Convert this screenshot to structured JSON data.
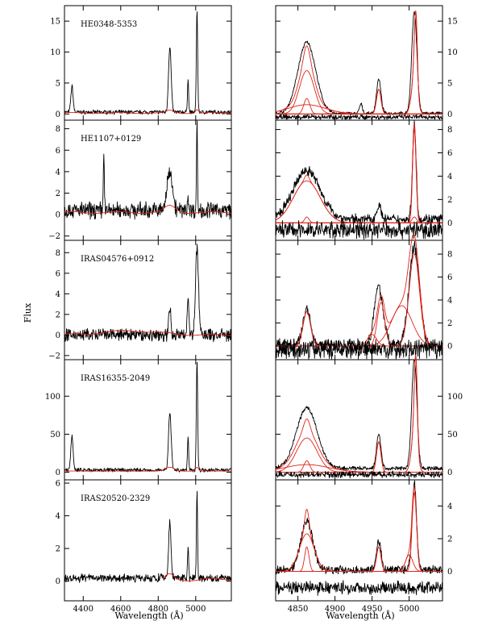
{
  "figure": {
    "ylabel": "Flux",
    "xlabel_left": "Wavelength (Å)",
    "xlabel_right": "Wavelength (Å)",
    "colors": {
      "spectrum": "#000000",
      "model": "#e0241a"
    }
  },
  "chart_data": [
    {
      "type": "line",
      "panel": "left-1",
      "name": "HE0348-5353",
      "xlim": [
        4300,
        5190
      ],
      "ylim": [
        -1,
        17.5
      ],
      "xticks": [
        4400,
        4600,
        4800,
        5000
      ],
      "xtick_labels": [
        "4400",
        "4600",
        "4800",
        "5000"
      ],
      "yticks": [
        0,
        5,
        10,
        15
      ],
      "ytick_labels": [
        "0",
        "5",
        "10",
        "15"
      ],
      "baseline": 0.3,
      "noise": 0.25,
      "peaks": [
        [
          4340,
          4.2,
          6
        ],
        [
          4862,
          10.5,
          7
        ],
        [
          4959,
          5.5,
          3
        ],
        [
          5007,
          16.5,
          3.5
        ]
      ],
      "fit_peaks": [
        [
          4862,
          0.4,
          20
        ],
        [
          5007,
          0.6,
          8
        ]
      ],
      "fit_start": 4300
    },
    {
      "type": "line",
      "panel": "right-1",
      "xlim": [
        4820,
        5045
      ],
      "ylim": [
        -1,
        17.5
      ],
      "yticks": [
        0,
        5,
        10,
        15
      ],
      "ytick_labels": [
        "0",
        "5",
        "10",
        "15"
      ],
      "baseline": 0.1,
      "noise": 0.2,
      "peaks": [
        [
          4862,
          11.5,
          12
        ],
        [
          4935,
          1.5,
          2
        ],
        [
          4959,
          5.5,
          3
        ],
        [
          5007,
          16.3,
          3.5
        ]
      ],
      "components": [
        [
          [
            4862,
            7.0,
            10
          ]
        ],
        [
          [
            4862,
            2.5,
            4
          ]
        ],
        [
          [
            4862,
            1.5,
            25
          ]
        ],
        [
          [
            4959,
            4.0,
            3
          ]
        ],
        [
          [
            5007,
            5.5,
            4
          ],
          [
            5009,
            11.8,
            2
          ]
        ]
      ],
      "residual_offset": -0.5
    },
    {
      "type": "line",
      "panel": "left-2",
      "name": "HE1107+0129",
      "xlim": [
        4300,
        5190
      ],
      "ylim": [
        -2.4,
        8.8
      ],
      "yticks": [
        -2,
        0,
        2,
        4,
        6,
        8
      ],
      "ytick_labels": [
        "−2",
        "0",
        "2",
        "4",
        "6",
        "8"
      ],
      "baseline": 0.4,
      "noise": 0.6,
      "peaks": [
        [
          4510,
          6.0,
          2.5
        ],
        [
          4862,
          3.8,
          14
        ],
        [
          4959,
          1.4,
          3
        ],
        [
          5007,
          8.5,
          2.5
        ]
      ],
      "fit_peaks": [
        [
          4862,
          0.6,
          30
        ]
      ],
      "fit_start": 4300
    },
    {
      "type": "line",
      "panel": "right-2",
      "xlim": [
        4820,
        5045
      ],
      "ylim": [
        -1.5,
        8.8
      ],
      "yticks": [
        0,
        2,
        4,
        6,
        8
      ],
      "ytick_labels": [
        "0",
        "2",
        "4",
        "6",
        "8"
      ],
      "baseline": 0.3,
      "noise": 0.35,
      "peaks": [
        [
          4862,
          4.2,
          18
        ],
        [
          4959,
          1.2,
          3
        ],
        [
          5007,
          8.2,
          2.5
        ]
      ],
      "components": [
        [
          [
            4862,
            3.6,
            18
          ]
        ],
        [
          [
            4862,
            0.5,
            3
          ]
        ],
        [
          [
            5007,
            8.0,
            2.3
          ]
        ],
        [
          [
            5007,
            0.5,
            3
          ]
        ]
      ],
      "residual_offset": -0.6
    },
    {
      "type": "line",
      "panel": "left-3",
      "name": "IRAS04576+0912",
      "xlim": [
        4300,
        5190
      ],
      "ylim": [
        -2.4,
        9.2
      ],
      "yticks": [
        -2,
        0,
        2,
        4,
        6,
        8
      ],
      "ytick_labels": [
        "−2",
        "0",
        "2",
        "4",
        "6",
        "8"
      ],
      "baseline": 0.0,
      "noise": 0.5,
      "peaks": [
        [
          4862,
          2.5,
          6
        ],
        [
          4959,
          3.5,
          5
        ],
        [
          5007,
          8.3,
          8
        ]
      ],
      "fit_peaks": [
        [
          4650,
          0.4,
          150
        ]
      ],
      "fit_start": 4300
    },
    {
      "type": "line",
      "panel": "right-3",
      "xlim": [
        4820,
        5045
      ],
      "ylim": [
        -1.2,
        9.2
      ],
      "yticks": [
        0,
        2,
        4,
        6,
        8
      ],
      "ytick_labels": [
        "0",
        "2",
        "4",
        "6",
        "8"
      ],
      "baseline": 0.1,
      "noise": 0.4,
      "peaks": [
        [
          4862,
          3.2,
          5
        ],
        [
          4959,
          5.0,
          6
        ],
        [
          5007,
          8.5,
          7
        ]
      ],
      "components": [
        [
          [
            4862,
            3.0,
            5
          ]
        ],
        [
          [
            4950,
            1.0,
            6
          ]
        ],
        [
          [
            4962,
            3.8,
            5
          ]
        ],
        [
          [
            4990,
            3.5,
            14
          ]
        ],
        [
          [
            5007,
            8.0,
            7
          ]
        ]
      ],
      "residual_offset": -0.3
    },
    {
      "type": "line",
      "panel": "left-4",
      "name": "IRAS16355-2049",
      "xlim": [
        4300,
        5190
      ],
      "ylim": [
        -10,
        148
      ],
      "yticks": [
        0,
        50,
        100
      ],
      "ytick_labels": [
        "0",
        "50",
        "100"
      ],
      "baseline": 3,
      "noise": 2,
      "peaks": [
        [
          4340,
          45,
          6
        ],
        [
          4862,
          75,
          7
        ],
        [
          4959,
          45,
          3
        ],
        [
          5007,
          145,
          3.5
        ]
      ],
      "fit_peaks": [
        [
          4862,
          5,
          25
        ],
        [
          5007,
          5,
          8
        ]
      ],
      "fit_start": 4300
    },
    {
      "type": "line",
      "panel": "right-4",
      "xlim": [
        4820,
        5045
      ],
      "ylim": [
        -10,
        148
      ],
      "yticks": [
        0,
        50,
        100
      ],
      "ytick_labels": [
        "0",
        "50",
        "100"
      ],
      "baseline": 5,
      "noise": 2,
      "peaks": [
        [
          4862,
          80,
          14
        ],
        [
          4959,
          45,
          3
        ],
        [
          5007,
          145,
          3.5
        ]
      ],
      "components": [
        [
          [
            4862,
            45,
            14
          ]
        ],
        [
          [
            4862,
            15,
            4
          ]
        ],
        [
          [
            4862,
            10,
            30
          ]
        ],
        [
          [
            4959,
            40,
            3
          ]
        ],
        [
          [
            5007,
            50,
            4
          ],
          [
            5009,
            110,
            2
          ]
        ]
      ],
      "residual_offset": -3
    },
    {
      "type": "line",
      "panel": "left-5",
      "name": "IRAS20520-2329",
      "xlim": [
        4300,
        5190
      ],
      "ylim": [
        -1.2,
        6.2
      ],
      "yticks": [
        0,
        2,
        4,
        6
      ],
      "ytick_labels": [
        "0",
        "2",
        "4",
        "6"
      ],
      "baseline": 0.2,
      "noise": 0.2,
      "peaks": [
        [
          4862,
          3.5,
          6
        ],
        [
          4959,
          1.8,
          3
        ],
        [
          5007,
          5.5,
          3
        ]
      ],
      "fit_peaks": [
        [
          4862,
          0.3,
          20
        ]
      ],
      "fit_start": 4820
    },
    {
      "type": "line",
      "panel": "right-5",
      "xlim": [
        4820,
        5045
      ],
      "ylim": [
        -1.8,
        5.6
      ],
      "xticks": [
        4850,
        4900,
        4950,
        5000
      ],
      "xtick_labels": [
        "4850",
        "4900",
        "4950",
        "5000"
      ],
      "yticks": [
        0,
        2,
        4
      ],
      "ytick_labels": [
        "0",
        "2",
        "4"
      ],
      "baseline": 0.1,
      "noise": 0.2,
      "peaks": [
        [
          4862,
          3.0,
          8
        ],
        [
          4959,
          1.8,
          3
        ],
        [
          5007,
          5.3,
          3
        ]
      ],
      "components": [
        [
          [
            4862,
            2.3,
            10
          ]
        ],
        [
          [
            4862,
            1.5,
            3
          ]
        ],
        [
          [
            4959,
            1.5,
            3
          ]
        ],
        [
          [
            5007,
            4.8,
            3
          ]
        ],
        [
          [
            5000,
            1.0,
            5
          ]
        ]
      ],
      "residual_offset": -1.0
    }
  ]
}
